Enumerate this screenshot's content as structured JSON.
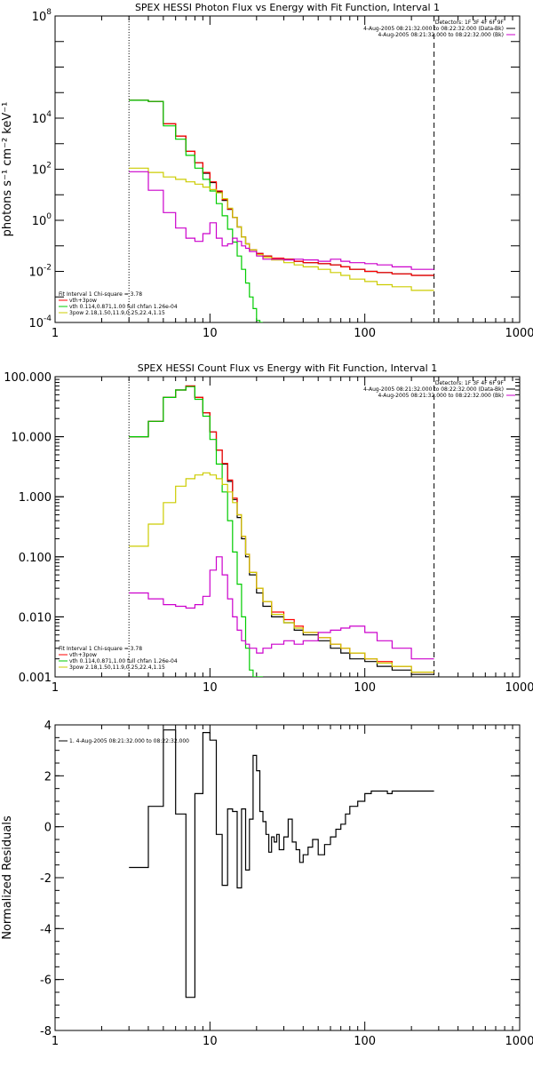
{
  "chart_data": [
    {
      "type": "line",
      "title": "SPEX HESSI Photon Flux vs Energy with Fit Function, Interval 1",
      "ylabel": "photons s⁻¹ cm⁻² keV⁻¹",
      "xscale": "log",
      "yscale": "log",
      "xlim": [
        1,
        1000
      ],
      "ylim": [
        0.0001,
        100000000
      ],
      "xticks": [
        {
          "v": 1,
          "label": "1"
        },
        {
          "v": 10,
          "label": "10"
        },
        {
          "v": 100,
          "label": "100"
        },
        {
          "v": 1000,
          "label": "1000"
        }
      ],
      "yticks": [
        {
          "v": 0.0001,
          "m": "10",
          "e": "-4"
        },
        {
          "v": 0.01,
          "m": "10",
          "e": "-2"
        },
        {
          "v": 1,
          "m": "10",
          "e": "0"
        },
        {
          "v": 100,
          "m": "10",
          "e": "2"
        },
        {
          "v": 10000,
          "m": "10",
          "e": "4"
        },
        {
          "v": 100000000,
          "m": "10",
          "e": "8"
        }
      ],
      "vlines": [
        {
          "x": 3,
          "dash": "1,2",
          "color": "#000000"
        },
        {
          "x": 280,
          "dash": "6,4",
          "color": "#000000"
        }
      ],
      "header_lines": [
        "Detectors: 1F 3F 4F 6F 9F",
        "4-Aug-2005 08:21:32.000 to 08:22:32.000 (Data-Bk)",
        "4-Aug-2005 08:21:32.000 to 08:22:32.000 (Bk)"
      ],
      "header_colors": [
        "",
        "#000000",
        "#cc00cc"
      ],
      "legend": {
        "title": "Fit Interval 1   Chi-square = 3.78",
        "entries": [
          {
            "label": "vth+3pow",
            "color": "#ff0000"
          },
          {
            "label": "vth 0.114,0.871,1.00  full chfan 1.26e-04",
            "color": "#00cc00"
          },
          {
            "label": "3pow 2.18,1.50,11.9,0.25,22.4,1.15",
            "color": "#cccc00"
          }
        ]
      },
      "series": [
        {
          "color": "#000000",
          "x": [
            3,
            4,
            5,
            6,
            7,
            8,
            9,
            10,
            11,
            12,
            13,
            14,
            15,
            16,
            17,
            18,
            20,
            22,
            25,
            30,
            35,
            40,
            50,
            60,
            70,
            80,
            100,
            120,
            150,
            200,
            280
          ],
          "y": [
            50000,
            45000,
            6000,
            2000,
            500,
            180,
            70,
            30,
            13,
            6,
            2.7,
            1.3,
            0.55,
            0.22,
            0.12,
            0.07,
            0.05,
            0.04,
            0.033,
            0.03,
            0.025,
            0.022,
            0.02,
            0.018,
            0.015,
            0.012,
            0.01,
            0.009,
            0.008,
            0.007,
            0.006
          ]
        },
        {
          "color": "#ff0000",
          "x": [
            3,
            4,
            5,
            6,
            7,
            8,
            9,
            10,
            11,
            12,
            13,
            14,
            15,
            16,
            17,
            18,
            20,
            22,
            25,
            30,
            35,
            40,
            50,
            60,
            70,
            80,
            100,
            120,
            150,
            200,
            280
          ],
          "y": [
            50000,
            45000,
            6000,
            2000,
            500,
            180,
            75,
            32,
            14,
            6.5,
            2.8,
            1.3,
            0.55,
            0.22,
            0.12,
            0.07,
            0.05,
            0.04,
            0.033,
            0.03,
            0.025,
            0.022,
            0.02,
            0.018,
            0.015,
            0.012,
            0.01,
            0.009,
            0.008,
            0.007,
            0.006
          ]
        },
        {
          "color": "#00cc00",
          "x": [
            3,
            4,
            5,
            6,
            7,
            8,
            9,
            10,
            11,
            12,
            13,
            14,
            15,
            16,
            17,
            18,
            19,
            20,
            21,
            22
          ],
          "y": [
            50000,
            45000,
            5000,
            1500,
            350,
            110,
            40,
            14,
            4.5,
            1.5,
            0.45,
            0.14,
            0.04,
            0.012,
            0.0035,
            0.001,
            0.00035,
            0.00012,
            0.0001,
            0.0001
          ]
        },
        {
          "color": "#cccc00",
          "x": [
            3,
            4,
            5,
            6,
            7,
            8,
            9,
            10,
            11,
            12,
            13,
            14,
            15,
            16,
            17,
            18,
            20,
            22,
            25,
            30,
            35,
            40,
            50,
            60,
            70,
            80,
            100,
            120,
            150,
            200,
            280
          ],
          "y": [
            110,
            75,
            50,
            40,
            32,
            26,
            20,
            16,
            12,
            7,
            3,
            1.3,
            0.55,
            0.22,
            0.12,
            0.07,
            0.045,
            0.035,
            0.028,
            0.022,
            0.018,
            0.015,
            0.012,
            0.009,
            0.007,
            0.005,
            0.004,
            0.003,
            0.0025,
            0.0018,
            0.0001
          ]
        },
        {
          "color": "#cc00cc",
          "x": [
            3,
            4,
            5,
            6,
            7,
            8,
            9,
            10,
            11,
            12,
            13,
            14,
            15,
            16,
            17,
            18,
            20,
            22,
            25,
            30,
            35,
            40,
            50,
            60,
            70,
            80,
            100,
            120,
            150,
            200,
            280
          ],
          "y": [
            80,
            15,
            2,
            0.5,
            0.2,
            0.15,
            0.3,
            0.8,
            0.2,
            0.1,
            0.12,
            0.2,
            0.15,
            0.1,
            0.08,
            0.06,
            0.04,
            0.03,
            0.03,
            0.028,
            0.03,
            0.028,
            0.025,
            0.03,
            0.025,
            0.022,
            0.02,
            0.018,
            0.015,
            0.012,
            0.01
          ]
        }
      ]
    },
    {
      "type": "line",
      "title": "SPEX HESSI Count Flux vs Energy with Fit Function, Interval 1",
      "ylabel": "",
      "xscale": "log",
      "yscale": "log",
      "xlim": [
        1,
        1000
      ],
      "ylim": [
        0.001,
        100
      ],
      "xticks": [
        {
          "v": 1,
          "label": "1"
        },
        {
          "v": 10,
          "label": "10"
        },
        {
          "v": 100,
          "label": "100"
        },
        {
          "v": 1000,
          "label": "1000"
        }
      ],
      "yticks": [
        {
          "v": 0.001,
          "label": "0.001"
        },
        {
          "v": 0.01,
          "label": "0.010"
        },
        {
          "v": 0.1,
          "label": "0.100"
        },
        {
          "v": 1,
          "label": "1.000"
        },
        {
          "v": 10,
          "label": "10.000"
        },
        {
          "v": 100,
          "label": "100.000"
        }
      ],
      "vlines": [
        {
          "x": 3,
          "dash": "1,2",
          "color": "#000000"
        },
        {
          "x": 280,
          "dash": "6,4",
          "color": "#000000"
        }
      ],
      "header_lines": [
        "Detectors: 1F 3F 4F 6F 9F",
        "4-Aug-2005 08:21:32.000 to 08:22:32.000 (Data-Bk)",
        "4-Aug-2005 08:21:32.000 to 08:22:32.000 (Bk)"
      ],
      "header_colors": [
        "",
        "#000000",
        "#cc00cc"
      ],
      "legend": {
        "title": "Fit Interval 1   Chi-square = 3.78",
        "entries": [
          {
            "label": "vth+3pow",
            "color": "#ff0000"
          },
          {
            "label": "vth 0.114,0.871,1.00  full chfan 1.26e-04",
            "color": "#00cc00"
          },
          {
            "label": "3pow 2.18,1.50,11.9,0.25,22.4,1.15",
            "color": "#cccc00"
          }
        ]
      },
      "series": [
        {
          "color": "#000000",
          "x": [
            3,
            4,
            5,
            6,
            7,
            8,
            9,
            10,
            11,
            12,
            13,
            14,
            15,
            16,
            17,
            18,
            20,
            22,
            25,
            30,
            35,
            40,
            50,
            60,
            70,
            80,
            100,
            120,
            150,
            200,
            280
          ],
          "y": [
            10,
            18,
            45,
            60,
            70,
            45,
            25,
            12,
            6,
            3.5,
            1.8,
            0.9,
            0.45,
            0.2,
            0.1,
            0.05,
            0.025,
            0.015,
            0.01,
            0.008,
            0.006,
            0.005,
            0.004,
            0.003,
            0.0025,
            0.002,
            0.0018,
            0.0015,
            0.0013,
            0.0011,
            0.001
          ]
        },
        {
          "color": "#ff0000",
          "x": [
            3,
            4,
            5,
            6,
            7,
            8,
            9,
            10,
            11,
            12,
            13,
            14,
            15,
            16,
            17,
            18,
            20,
            22,
            25,
            30,
            35,
            40,
            50,
            60,
            70,
            80,
            100,
            120,
            150,
            200,
            280
          ],
          "y": [
            10,
            18,
            45,
            60,
            70,
            45,
            25,
            12,
            6,
            3.6,
            1.9,
            0.95,
            0.5,
            0.22,
            0.11,
            0.055,
            0.03,
            0.018,
            0.012,
            0.009,
            0.007,
            0.0055,
            0.0045,
            0.0035,
            0.003,
            0.0025,
            0.002,
            0.0018,
            0.0015,
            0.0012,
            0.001
          ]
        },
        {
          "color": "#00cc00",
          "x": [
            3,
            4,
            5,
            6,
            7,
            8,
            9,
            10,
            11,
            12,
            13,
            14,
            15,
            16,
            17,
            18,
            19,
            20,
            21,
            22
          ],
          "y": [
            10,
            18,
            45,
            60,
            68,
            42,
            22,
            9,
            3.5,
            1.2,
            0.4,
            0.12,
            0.035,
            0.01,
            0.003,
            0.0013,
            0.001,
            0.001,
            0.001,
            0.001
          ]
        },
        {
          "color": "#cccc00",
          "x": [
            3,
            4,
            5,
            6,
            7,
            8,
            9,
            10,
            11,
            12,
            13,
            14,
            15,
            16,
            17,
            18,
            20,
            22,
            25,
            30,
            35,
            40,
            50,
            60,
            70,
            80,
            100,
            120,
            150,
            200,
            280
          ],
          "y": [
            0.15,
            0.35,
            0.8,
            1.5,
            2.0,
            2.3,
            2.5,
            2.3,
            2.0,
            1.6,
            1.2,
            0.8,
            0.5,
            0.22,
            0.11,
            0.055,
            0.03,
            0.018,
            0.011,
            0.008,
            0.0065,
            0.0055,
            0.0045,
            0.0035,
            0.003,
            0.0025,
            0.002,
            0.0017,
            0.0015,
            0.0012,
            0.001
          ]
        },
        {
          "color": "#cc00cc",
          "x": [
            3,
            4,
            5,
            6,
            7,
            8,
            9,
            10,
            11,
            12,
            13,
            14,
            15,
            16,
            17,
            18,
            20,
            22,
            25,
            30,
            35,
            40,
            50,
            60,
            70,
            80,
            100,
            120,
            150,
            200,
            280
          ],
          "y": [
            0.025,
            0.02,
            0.016,
            0.015,
            0.014,
            0.016,
            0.022,
            0.06,
            0.1,
            0.05,
            0.02,
            0.01,
            0.006,
            0.004,
            0.0035,
            0.003,
            0.0025,
            0.003,
            0.0035,
            0.004,
            0.0035,
            0.004,
            0.0055,
            0.006,
            0.0065,
            0.007,
            0.0055,
            0.004,
            0.003,
            0.002,
            0.0015
          ]
        }
      ]
    },
    {
      "type": "line",
      "title": "",
      "ylabel": "Normalized Residuals",
      "xscale": "log",
      "yscale": "linear",
      "xlim": [
        1,
        1000
      ],
      "ylim": [
        -8,
        4
      ],
      "xticks": [
        {
          "v": 1,
          "label": "1"
        },
        {
          "v": 10,
          "label": "10"
        },
        {
          "v": 100,
          "label": "100"
        },
        {
          "v": 1000,
          "label": "1000"
        }
      ],
      "yticks": [
        {
          "v": -8,
          "label": "-8"
        },
        {
          "v": -6,
          "label": "-6"
        },
        {
          "v": -4,
          "label": "-4"
        },
        {
          "v": -2,
          "label": "-2"
        },
        {
          "v": 0,
          "label": "0"
        },
        {
          "v": 2,
          "label": "2"
        },
        {
          "v": 4,
          "label": "4"
        }
      ],
      "vlines": [],
      "header_lines": [],
      "legend": {
        "title": "",
        "entries": [
          {
            "label": "1.  4-Aug-2005 08:21:32.000 to 08:22:32.000",
            "color": "#000000"
          }
        ]
      },
      "series": [
        {
          "color": "#000000",
          "x": [
            3,
            4,
            5,
            6,
            7,
            8,
            9,
            10,
            11,
            12,
            13,
            14,
            15,
            16,
            17,
            18,
            19,
            20,
            21,
            22,
            23,
            24,
            25,
            26,
            27,
            28,
            30,
            32,
            34,
            36,
            38,
            40,
            43,
            46,
            50,
            55,
            60,
            65,
            70,
            75,
            80,
            90,
            100,
            110,
            120,
            130,
            140,
            150,
            160,
            170,
            180,
            200,
            220,
            250,
            280
          ],
          "y": [
            -1.6,
            0.8,
            3.8,
            0.5,
            -6.7,
            1.3,
            3.7,
            3.4,
            -0.3,
            -2.3,
            0.7,
            0.6,
            -2.4,
            0.7,
            -1.7,
            0.3,
            2.8,
            2.2,
            0.6,
            0.2,
            -0.3,
            -1.0,
            -0.4,
            -0.6,
            -0.3,
            -0.9,
            -0.4,
            0.3,
            -0.6,
            -0.9,
            -1.4,
            -1.1,
            -0.8,
            -0.5,
            -1.1,
            -0.7,
            -0.4,
            -0.1,
            0.1,
            0.5,
            0.8,
            1.0,
            1.3,
            1.4,
            1.4,
            1.4,
            1.3,
            1.4,
            1.4,
            1.4,
            1.4,
            1.4,
            1.4,
            1.4,
            1.4
          ]
        }
      ]
    }
  ]
}
